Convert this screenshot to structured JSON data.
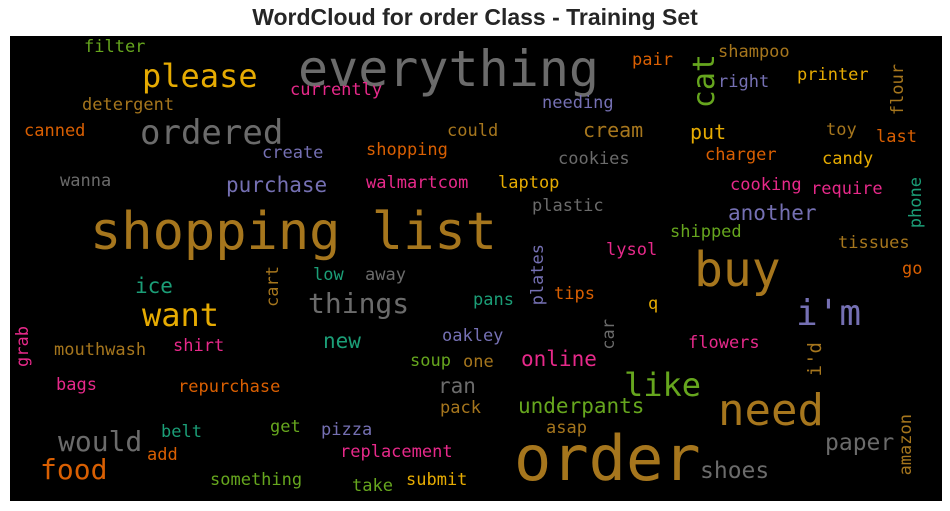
{
  "chart_data": {
    "type": "wordcloud",
    "title": "WordCloud for order Class - Training Set",
    "words": [
      {
        "text": "everything",
        "color": "#6b6b6b"
      },
      {
        "text": "please",
        "color": "#e6ab02"
      },
      {
        "text": "ordered",
        "color": "#6b6b6b"
      },
      {
        "text": "filter",
        "color": "#66a61e"
      },
      {
        "text": "detergent",
        "color": "#a6761d"
      },
      {
        "text": "canned",
        "color": "#d95f02"
      },
      {
        "text": "currently",
        "color": "#e7298a"
      },
      {
        "text": "needing",
        "color": "#7570b3"
      },
      {
        "text": "could",
        "color": "#a6761d"
      },
      {
        "text": "cream",
        "color": "#a6761d"
      },
      {
        "text": "cat",
        "color": "#66a61e"
      },
      {
        "text": "pair",
        "color": "#d95f02"
      },
      {
        "text": "shampoo",
        "color": "#a6761d"
      },
      {
        "text": "right",
        "color": "#7570b3"
      },
      {
        "text": "printer",
        "color": "#e6ab02"
      },
      {
        "text": "flour",
        "color": "#a6761d"
      },
      {
        "text": "put",
        "color": "#e6ab02"
      },
      {
        "text": "toy",
        "color": "#a6761d"
      },
      {
        "text": "last",
        "color": "#d95f02"
      },
      {
        "text": "create",
        "color": "#7570b3"
      },
      {
        "text": "shopping",
        "color": "#d95f02"
      },
      {
        "text": "cookies",
        "color": "#6b6b6b"
      },
      {
        "text": "charger",
        "color": "#d95f02"
      },
      {
        "text": "candy",
        "color": "#e6ab02"
      },
      {
        "text": "wanna",
        "color": "#6b6b6b"
      },
      {
        "text": "purchase",
        "color": "#7570b3"
      },
      {
        "text": "walmartcom",
        "color": "#e7298a"
      },
      {
        "text": "laptop",
        "color": "#e6ab02"
      },
      {
        "text": "cooking",
        "color": "#e7298a"
      },
      {
        "text": "require",
        "color": "#e7298a"
      },
      {
        "text": "phone",
        "color": "#1b9e77"
      },
      {
        "text": "plastic",
        "color": "#6b6b6b"
      },
      {
        "text": "another",
        "color": "#7570b3"
      },
      {
        "text": "shopping list",
        "color": "#a6761d"
      },
      {
        "text": "shipped",
        "color": "#66a61e"
      },
      {
        "text": "tissues",
        "color": "#a6761d"
      },
      {
        "text": "lysol",
        "color": "#e7298a"
      },
      {
        "text": "buy",
        "color": "#a6761d"
      },
      {
        "text": "go",
        "color": "#d95f02"
      },
      {
        "text": "ice",
        "color": "#1b9e77"
      },
      {
        "text": "cart",
        "color": "#a6761d"
      },
      {
        "text": "low",
        "color": "#1b9e77"
      },
      {
        "text": "away",
        "color": "#6b6b6b"
      },
      {
        "text": "plates",
        "color": "#7570b3"
      },
      {
        "text": "things",
        "color": "#6b6b6b"
      },
      {
        "text": "pans",
        "color": "#1b9e77"
      },
      {
        "text": "tips",
        "color": "#d95f02"
      },
      {
        "text": "q",
        "color": "#e6ab02"
      },
      {
        "text": "want",
        "color": "#e6ab02"
      },
      {
        "text": "i'm",
        "color": "#7570b3"
      },
      {
        "text": "grab",
        "color": "#e7298a"
      },
      {
        "text": "new",
        "color": "#1b9e77"
      },
      {
        "text": "oakley",
        "color": "#7570b3"
      },
      {
        "text": "car",
        "color": "#6b6b6b"
      },
      {
        "text": "mouthwash",
        "color": "#a6761d"
      },
      {
        "text": "shirt",
        "color": "#e7298a"
      },
      {
        "text": "soup",
        "color": "#66a61e"
      },
      {
        "text": "one",
        "color": "#a6761d"
      },
      {
        "text": "online",
        "color": "#e7298a"
      },
      {
        "text": "flowers",
        "color": "#e7298a"
      },
      {
        "text": "i'd",
        "color": "#a6761d"
      },
      {
        "text": "bags",
        "color": "#e7298a"
      },
      {
        "text": "repurchase",
        "color": "#d95f02"
      },
      {
        "text": "ran",
        "color": "#6b6b6b"
      },
      {
        "text": "like",
        "color": "#66a61e"
      },
      {
        "text": "pack",
        "color": "#a6761d"
      },
      {
        "text": "underpants",
        "color": "#66a61e"
      },
      {
        "text": "need",
        "color": "#a6761d"
      },
      {
        "text": "would",
        "color": "#6b6b6b"
      },
      {
        "text": "belt",
        "color": "#1b9e77"
      },
      {
        "text": "get",
        "color": "#66a61e"
      },
      {
        "text": "pizza",
        "color": "#7570b3"
      },
      {
        "text": "asap",
        "color": "#a6761d"
      },
      {
        "text": "amazon",
        "color": "#a6761d"
      },
      {
        "text": "paper",
        "color": "#6b6b6b"
      },
      {
        "text": "add",
        "color": "#d95f02"
      },
      {
        "text": "replacement",
        "color": "#e7298a"
      },
      {
        "text": "order",
        "color": "#a6761d"
      },
      {
        "text": "shoes",
        "color": "#6b6b6b"
      },
      {
        "text": "food",
        "color": "#d95f02"
      },
      {
        "text": "something",
        "color": "#66a61e"
      },
      {
        "text": "take",
        "color": "#66a61e"
      },
      {
        "text": "submit",
        "color": "#e6ab02"
      }
    ]
  }
}
